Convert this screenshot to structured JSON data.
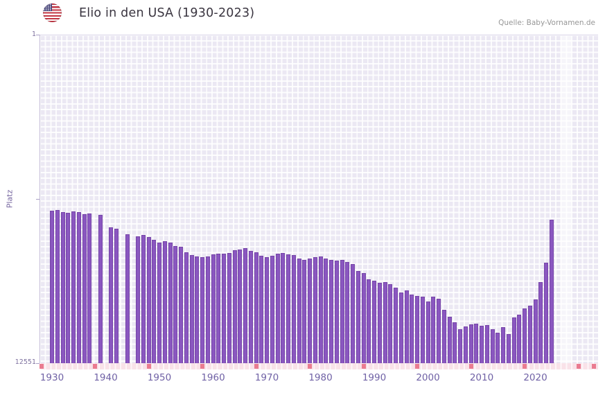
{
  "header": {
    "title": "Elio in den USA (1930-2023)",
    "source": "Quelle: Baby-Vornamen.de",
    "flag_country": "US"
  },
  "chart_data": {
    "type": "bar",
    "title": "Elio in den USA (1930-2023)",
    "xlabel": "",
    "ylabel": "Platz",
    "bar_color": "#8a57c0",
    "plot_background": "#ebe8f3",
    "grid": true,
    "y_axis": {
      "top_label": "1",
      "bottom_label": "12551",
      "min": 1,
      "max": 12551,
      "scale": "log",
      "inverted": true
    },
    "x_ticks": [
      1930,
      1940,
      1950,
      1960,
      1970,
      1980,
      1990,
      2000,
      2010,
      2020
    ],
    "years": [
      1930,
      1931,
      1932,
      1933,
      1934,
      1935,
      1936,
      1937,
      1938,
      1939,
      1940,
      1941,
      1942,
      1943,
      1944,
      1945,
      1946,
      1947,
      1948,
      1949,
      1950,
      1951,
      1952,
      1953,
      1954,
      1955,
      1956,
      1957,
      1958,
      1959,
      1960,
      1961,
      1962,
      1963,
      1964,
      1965,
      1966,
      1967,
      1968,
      1969,
      1970,
      1971,
      1972,
      1973,
      1974,
      1975,
      1976,
      1977,
      1978,
      1979,
      1980,
      1981,
      1982,
      1983,
      1984,
      1985,
      1986,
      1987,
      1988,
      1989,
      1990,
      1991,
      1992,
      1993,
      1994,
      1995,
      1996,
      1997,
      1998,
      1999,
      2000,
      2001,
      2002,
      2003,
      2004,
      2005,
      2006,
      2007,
      2008,
      2009,
      2010,
      2011,
      2012,
      2013,
      2014,
      2015,
      2016,
      2017,
      2018,
      2019,
      2020,
      2021,
      2022,
      2023
    ],
    "ranks": [
      158,
      155,
      163,
      168,
      160,
      165,
      172,
      170,
      null,
      178,
      null,
      255,
      262,
      null,
      310,
      null,
      330,
      315,
      335,
      360,
      390,
      375,
      395,
      430,
      445,
      520,
      560,
      590,
      600,
      580,
      555,
      535,
      545,
      525,
      490,
      475,
      465,
      500,
      520,
      570,
      600,
      575,
      540,
      530,
      555,
      565,
      615,
      640,
      625,
      600,
      590,
      615,
      640,
      665,
      650,
      685,
      730,
      880,
      940,
      1130,
      1180,
      1240,
      1210,
      1290,
      1440,
      1650,
      1550,
      1760,
      1820,
      1870,
      2150,
      1850,
      1960,
      2700,
      3300,
      3900,
      4700,
      4400,
      4100,
      4000,
      4300,
      4200,
      4700,
      5200,
      4500,
      5400,
      3400,
      3100,
      2600,
      2400,
      2000,
      1215,
      705,
      205
    ]
  }
}
